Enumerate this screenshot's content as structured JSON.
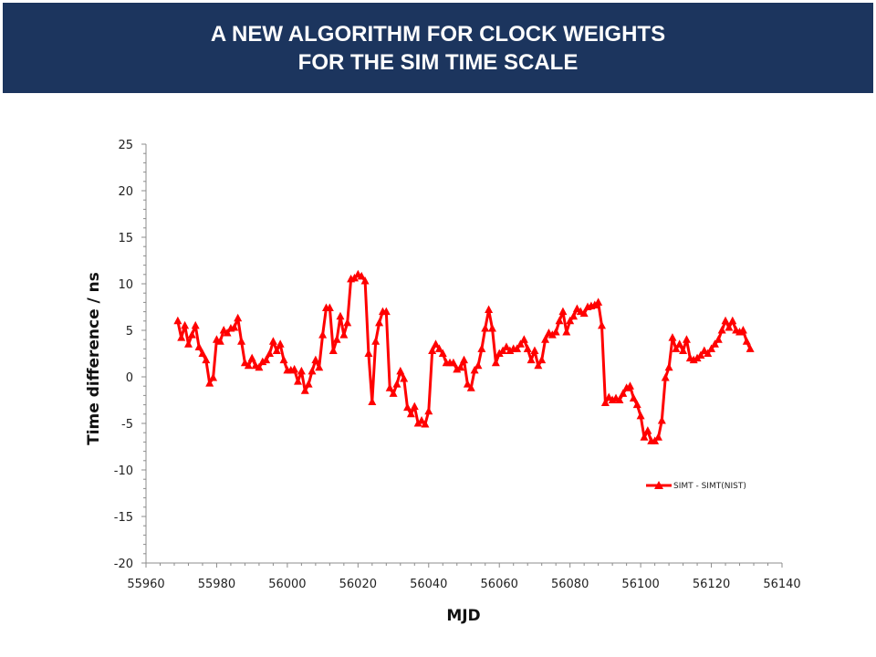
{
  "header": {
    "title_line1": "A NEW ALGORITHM FOR CLOCK WEIGHTS",
    "title_line2": "FOR THE SIM TIME SCALE"
  },
  "colors": {
    "header_bg": "#1c355e",
    "series": "#ff0000"
  },
  "chart_data": {
    "type": "line",
    "xlabel": "MJD",
    "ylabel": "Time difference / ns",
    "xlim": [
      55960,
      56140
    ],
    "ylim": [
      -20,
      25
    ],
    "x_ticks": [
      55960,
      55980,
      56000,
      56020,
      56040,
      56060,
      56080,
      56100,
      56120,
      56140
    ],
    "y_ticks": [
      25,
      20,
      15,
      10,
      5,
      0,
      -5,
      -10,
      -15,
      -20
    ],
    "grid": false,
    "legend_position": "right, lower-middle",
    "series": [
      {
        "name": "SIMT - SIMT(NIST)",
        "marker": "triangle",
        "x": [
          55969,
          55970,
          55971,
          55972,
          55973,
          55974,
          55975,
          55976,
          55977,
          55978,
          55979,
          55980,
          55981,
          55982,
          55983,
          55984,
          55985,
          55986,
          55987,
          55988,
          55989,
          55990,
          55991,
          55992,
          55993,
          55994,
          55995,
          55996,
          55997,
          55998,
          55999,
          56000,
          56001,
          56002,
          56003,
          56004,
          56005,
          56006,
          56007,
          56008,
          56009,
          56010,
          56011,
          56012,
          56013,
          56014,
          56015,
          56016,
          56017,
          56018,
          56019,
          56020,
          56021,
          56022,
          56023,
          56024,
          56025,
          56026,
          56027,
          56028,
          56029,
          56030,
          56031,
          56032,
          56033,
          56034,
          56035,
          56036,
          56037,
          56038,
          56039,
          56040,
          56041,
          56042,
          56043,
          56044,
          56045,
          56046,
          56047,
          56048,
          56049,
          56050,
          56051,
          56052,
          56053,
          56054,
          56055,
          56056,
          56057,
          56058,
          56059,
          56060,
          56061,
          56062,
          56063,
          56064,
          56065,
          56066,
          56067,
          56068,
          56069,
          56070,
          56071,
          56072,
          56073,
          56074,
          56075,
          56076,
          56077,
          56078,
          56079,
          56080,
          56081,
          56082,
          56083,
          56084,
          56085,
          56086,
          56087,
          56088,
          56089,
          56090,
          56091,
          56092,
          56093,
          56094,
          56095,
          56096,
          56097,
          56098,
          56099,
          56100,
          56101,
          56102,
          56103,
          56104,
          56105,
          56106,
          56107,
          56108,
          56109,
          56110,
          56111,
          56112,
          56113,
          56114,
          56115,
          56116,
          56117,
          56118,
          56119,
          56120,
          56121,
          56122,
          56123,
          56124,
          56125,
          56126,
          56127,
          56128,
          56129,
          56130,
          56131
        ],
        "y": [
          6.0,
          4.2,
          5.5,
          3.5,
          4.5,
          5.5,
          3.2,
          2.5,
          1.8,
          -0.7,
          -0.1,
          4.0,
          3.8,
          5.0,
          4.7,
          5.2,
          5.3,
          6.3,
          3.8,
          1.5,
          1.2,
          2.0,
          1.2,
          1.0,
          1.6,
          1.8,
          2.5,
          3.8,
          2.8,
          3.5,
          1.8,
          0.7,
          0.7,
          0.8,
          -0.5,
          0.6,
          -1.5,
          -0.8,
          0.6,
          1.8,
          1.0,
          4.5,
          7.4,
          7.4,
          2.8,
          4.0,
          6.5,
          4.5,
          5.8,
          10.5,
          10.6,
          11.0,
          10.8,
          10.3,
          2.5,
          -2.7,
          3.8,
          5.8,
          7.0,
          7.0,
          -1.2,
          -1.8,
          -0.8,
          0.6,
          -0.2,
          -3.3,
          -4.0,
          -3.2,
          -5.0,
          -4.7,
          -5.1,
          -3.7,
          2.8,
          3.5,
          3.0,
          2.5,
          1.5,
          1.5,
          1.5,
          0.8,
          1.0,
          1.8,
          -0.8,
          -1.2,
          0.7,
          1.2,
          3.0,
          5.2,
          7.2,
          5.2,
          1.5,
          2.5,
          2.8,
          3.2,
          2.8,
          3.0,
          3.0,
          3.5,
          4.0,
          3.0,
          1.8,
          2.8,
          1.2,
          1.8,
          4.0,
          4.7,
          4.5,
          4.8,
          6.0,
          7.0,
          4.8,
          6.0,
          6.5,
          7.3,
          7.0,
          6.8,
          7.5,
          7.6,
          7.7,
          8.0,
          5.5,
          -2.8,
          -2.2,
          -2.5,
          -2.3,
          -2.5,
          -1.8,
          -1.2,
          -1.0,
          -2.3,
          -3.0,
          -4.2,
          -6.5,
          -5.8,
          -6.9,
          -6.9,
          -6.5,
          -4.7,
          -0.1,
          1.0,
          4.2,
          3.0,
          3.5,
          2.8,
          4.0,
          2.0,
          1.8,
          2.0,
          2.3,
          2.8,
          2.5,
          3.0,
          3.5,
          4.0,
          5.0,
          6.0,
          5.3,
          6.0,
          5.0,
          4.8,
          5.0,
          3.8,
          3.0
        ]
      }
    ]
  }
}
